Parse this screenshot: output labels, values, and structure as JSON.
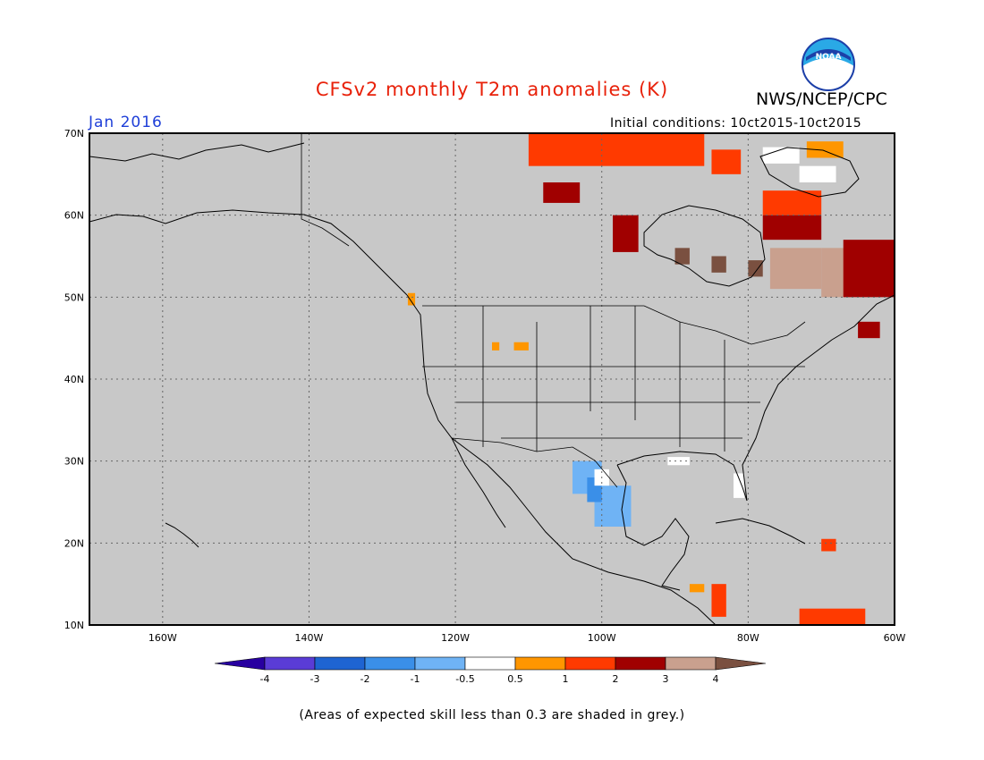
{
  "title": "CFSv2 monthly T2m anomalies (K)",
  "agency": "NWS/NCEP/CPC",
  "logo_text": "NOAA",
  "valid_month": "Jan 2016",
  "initial_conditions": "Initial conditions: 10ct2015-10ct2015",
  "footnote": "(Areas of expected skill less than 0.3 are shaded in grey.)",
  "map": {
    "background_color": "#c8c8c8",
    "lon_range": [
      -170,
      -60
    ],
    "lat_range": [
      10,
      70
    ],
    "lon_ticks": [
      {
        "value": -160,
        "label": "160W"
      },
      {
        "value": -140,
        "label": "140W"
      },
      {
        "value": -120,
        "label": "120W"
      },
      {
        "value": -100,
        "label": "100W"
      },
      {
        "value": -80,
        "label": "80W"
      },
      {
        "value": -60,
        "label": "60W"
      }
    ],
    "lat_ticks": [
      {
        "value": 70,
        "label": "70N"
      },
      {
        "value": 60,
        "label": "60N"
      },
      {
        "value": 50,
        "label": "50N"
      },
      {
        "value": 40,
        "label": "40N"
      },
      {
        "value": 30,
        "label": "30N"
      },
      {
        "value": 20,
        "label": "20N"
      },
      {
        "value": 10,
        "label": "10N"
      }
    ],
    "anomaly_cells": [
      {
        "lon": -110,
        "lat": 66,
        "w": 24,
        "h": 4,
        "color": "#ff3a00"
      },
      {
        "lon": -85,
        "lat": 65,
        "w": 4,
        "h": 3,
        "color": "#ff3a00"
      },
      {
        "lon": -108,
        "lat": 61.5,
        "w": 5,
        "h": 2.5,
        "color": "#a00000"
      },
      {
        "lon": -98.5,
        "lat": 55.5,
        "w": 3.5,
        "h": 4.5,
        "color": "#a00000"
      },
      {
        "lon": -78,
        "lat": 66.3,
        "w": 5,
        "h": 2,
        "color": "#ffffff"
      },
      {
        "lon": -72,
        "lat": 67,
        "w": 5,
        "h": 2,
        "color": "#ff9600"
      },
      {
        "lon": -73,
        "lat": 64,
        "w": 5,
        "h": 2,
        "color": "#ffffff"
      },
      {
        "lon": -78,
        "lat": 60,
        "w": 8,
        "h": 3,
        "color": "#ff3a00"
      },
      {
        "lon": -78,
        "lat": 57,
        "w": 8,
        "h": 3,
        "color": "#a00000"
      },
      {
        "lon": -77,
        "lat": 51,
        "w": 7,
        "h": 5,
        "color": "#c9a08e"
      },
      {
        "lon": -70,
        "lat": 50,
        "w": 4,
        "h": 6,
        "color": "#c9a08e"
      },
      {
        "lon": -67,
        "lat": 50,
        "w": 7,
        "h": 7,
        "color": "#a00000"
      },
      {
        "lon": -65,
        "lat": 45,
        "w": 3,
        "h": 2,
        "color": "#a00000"
      },
      {
        "lon": -90,
        "lat": 54,
        "w": 2,
        "h": 2,
        "color": "#7a5040"
      },
      {
        "lon": -85,
        "lat": 53,
        "w": 2,
        "h": 2,
        "color": "#7a5040"
      },
      {
        "lon": -80,
        "lat": 52.5,
        "w": 2,
        "h": 2,
        "color": "#7a5040"
      },
      {
        "lon": -104,
        "lat": 26,
        "w": 4,
        "h": 4,
        "color": "#6fb3f5"
      },
      {
        "lon": -101,
        "lat": 22,
        "w": 5,
        "h": 5,
        "color": "#6fb3f5"
      },
      {
        "lon": -102,
        "lat": 25,
        "w": 2,
        "h": 3,
        "color": "#3a8fe8"
      },
      {
        "lon": -101,
        "lat": 27,
        "w": 2,
        "h": 2,
        "color": "#ffffff"
      },
      {
        "lon": -85,
        "lat": 11,
        "w": 2,
        "h": 4,
        "color": "#ff3a00"
      },
      {
        "lon": -88,
        "lat": 14,
        "w": 2,
        "h": 1,
        "color": "#ff9600"
      },
      {
        "lon": -70,
        "lat": 19,
        "w": 2,
        "h": 1.5,
        "color": "#ff3a00"
      },
      {
        "lon": -73,
        "lat": 10,
        "w": 9,
        "h": 2,
        "color": "#ff3a00"
      },
      {
        "lon": -126.5,
        "lat": 49,
        "w": 1,
        "h": 1.5,
        "color": "#ff9600"
      },
      {
        "lon": -112,
        "lat": 43.5,
        "w": 2,
        "h": 1,
        "color": "#ff9600"
      },
      {
        "lon": -115,
        "lat": 43.5,
        "w": 1,
        "h": 1,
        "color": "#ff9600"
      },
      {
        "lon": -82,
        "lat": 25.5,
        "w": 1.5,
        "h": 3,
        "color": "#ffffff"
      },
      {
        "lon": -91,
        "lat": 29.5,
        "w": 3,
        "h": 1,
        "color": "#ffffff"
      }
    ]
  },
  "legend": {
    "colors": [
      "#2800a0",
      "#5a3cd6",
      "#1e64d2",
      "#3a8fe8",
      "#6fb3f5",
      "#ffffff",
      "#ff9600",
      "#ff3a00",
      "#a00000",
      "#c9a08e",
      "#7a5040"
    ],
    "labels": [
      "-4",
      "-3",
      "-2",
      "-1",
      "-0.5",
      "0.5",
      "1",
      "2",
      "3",
      "4"
    ]
  }
}
